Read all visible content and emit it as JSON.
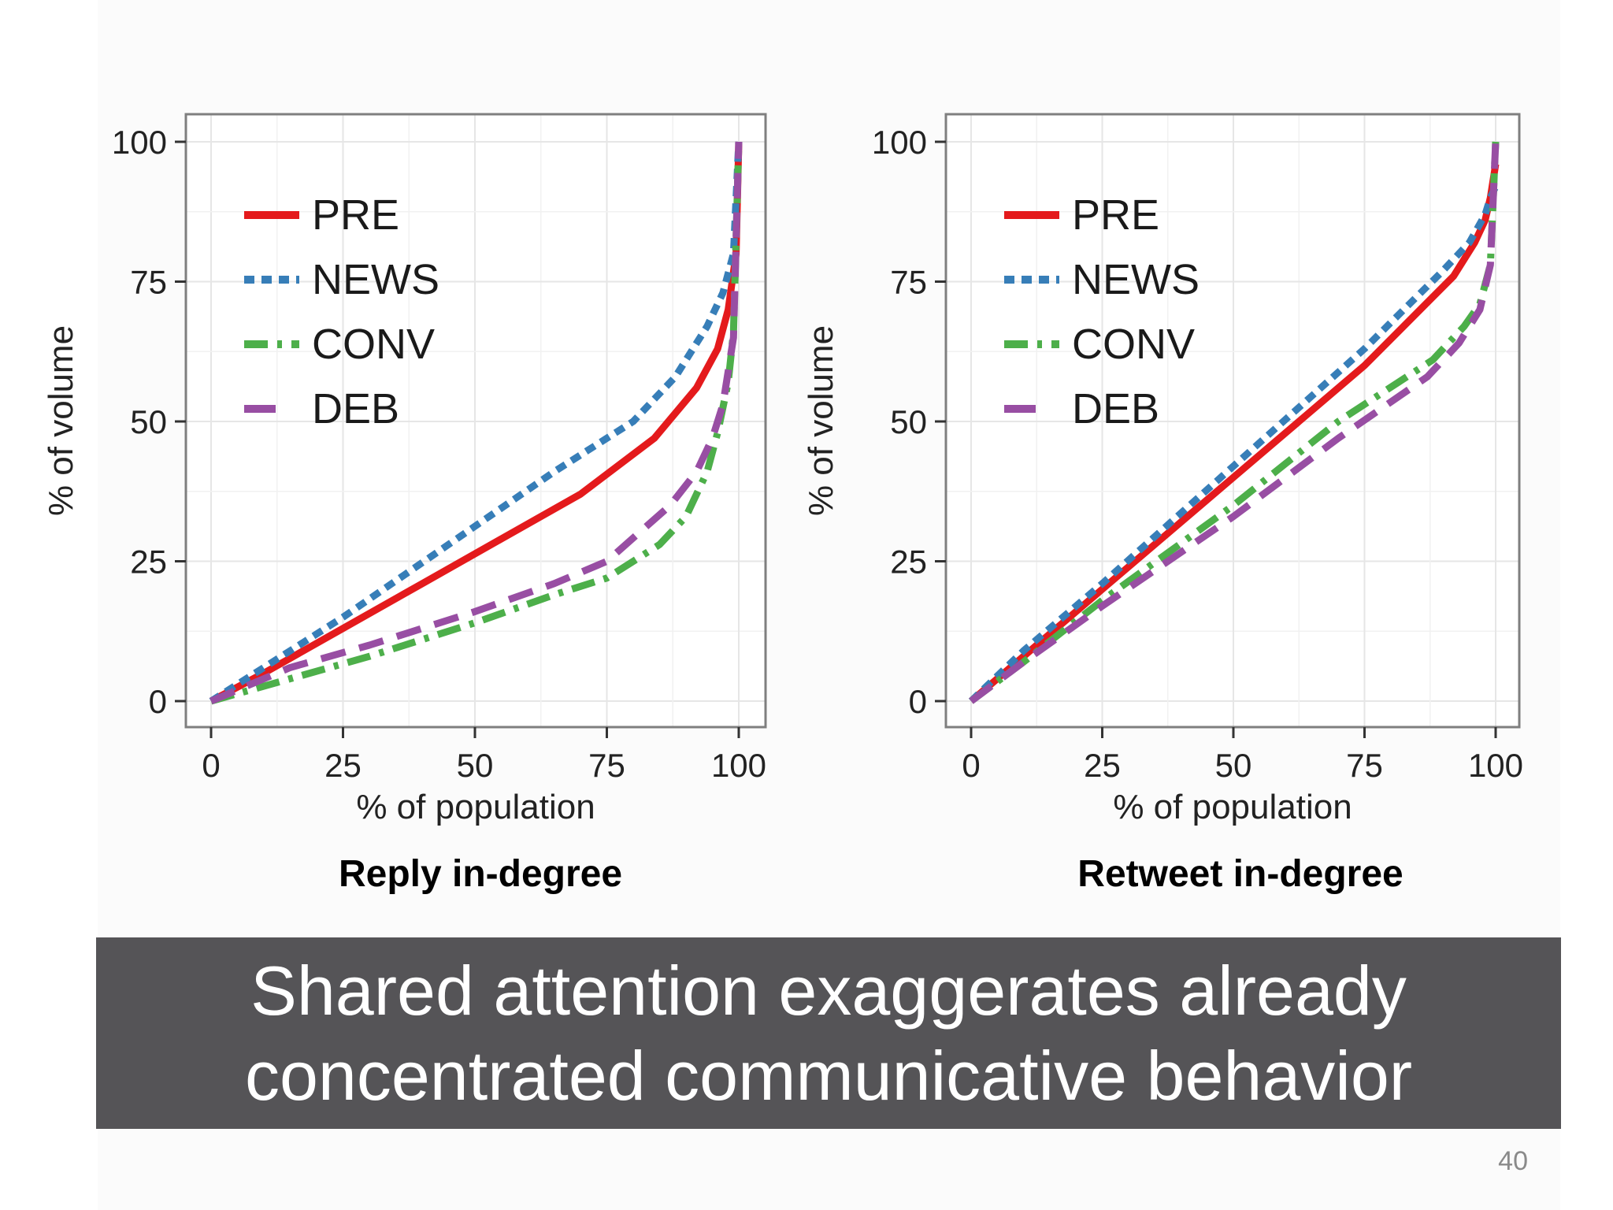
{
  "chart_data": [
    {
      "type": "line",
      "title": "Reply in-degree",
      "xlabel": "% of population",
      "ylabel": "% of volume",
      "xlim": [
        0,
        100
      ],
      "ylim": [
        0,
        100
      ],
      "xticks": [
        "0",
        "25",
        "50",
        "75",
        "100"
      ],
      "yticks": [
        "0",
        "25",
        "50",
        "75",
        "100"
      ],
      "grid": true,
      "legend_position": "top-left",
      "series": [
        {
          "name": "PRE",
          "color": "#e41a1c",
          "style": "solid",
          "x": [
            0,
            10,
            25,
            40,
            55,
            70,
            84,
            92,
            96,
            98,
            99.5,
            100
          ],
          "y": [
            0,
            5,
            13,
            21,
            29,
            37,
            47,
            56,
            63,
            70,
            80,
            100
          ]
        },
        {
          "name": "NEWS",
          "color": "#377eb8",
          "style": "dotted",
          "x": [
            0,
            10,
            25,
            45,
            65,
            80,
            88,
            94,
            97,
            99,
            100
          ],
          "y": [
            0,
            6,
            15,
            28,
            41,
            50,
            58,
            67,
            73,
            80,
            100
          ]
        },
        {
          "name": "CONV",
          "color": "#4daf4a",
          "style": "dashdot",
          "x": [
            0,
            15,
            30,
            50,
            65,
            75,
            85,
            90,
            94,
            96,
            98,
            99,
            100
          ],
          "y": [
            0,
            4,
            8,
            14,
            19,
            22,
            28,
            33,
            41,
            48,
            57,
            66,
            100
          ]
        },
        {
          "name": "DEB",
          "color": "#984ea3",
          "style": "dashed",
          "x": [
            0,
            15,
            30,
            50,
            65,
            75,
            87,
            92,
            95,
            97,
            99,
            100
          ],
          "y": [
            0,
            6,
            10,
            16,
            21,
            25,
            35,
            41,
            47,
            53,
            65,
            100
          ]
        }
      ]
    },
    {
      "type": "line",
      "title": "Retweet in-degree",
      "xlabel": "% of population",
      "ylabel": "% of volume",
      "xlim": [
        0,
        100
      ],
      "ylim": [
        0,
        100
      ],
      "xticks": [
        "0",
        "25",
        "50",
        "75",
        "100"
      ],
      "yticks": [
        "0",
        "25",
        "50",
        "75",
        "100"
      ],
      "grid": true,
      "legend_position": "top-left",
      "series": [
        {
          "name": "PRE",
          "color": "#e41a1c",
          "style": "solid",
          "x": [
            0,
            10,
            25,
            50,
            75,
            92,
            96,
            98,
            99,
            100
          ],
          "y": [
            0,
            8,
            20,
            40,
            60,
            76,
            82,
            86,
            90,
            96
          ]
        },
        {
          "name": "NEWS",
          "color": "#377eb8",
          "style": "dotted",
          "x": [
            0,
            10,
            25,
            50,
            75,
            90,
            95,
            98,
            99,
            100
          ],
          "y": [
            0,
            9,
            21,
            42,
            63,
            77,
            82,
            87,
            90,
            92
          ]
        },
        {
          "name": "CONV",
          "color": "#4daf4a",
          "style": "dashdot",
          "x": [
            0,
            10,
            25,
            50,
            70,
            88,
            94,
            97,
            99,
            100
          ],
          "y": [
            0,
            7,
            18,
            35,
            50,
            61,
            67,
            71,
            78,
            100
          ]
        },
        {
          "name": "DEB",
          "color": "#984ea3",
          "style": "dashed",
          "x": [
            0,
            10,
            25,
            50,
            70,
            87,
            93,
            97,
            99,
            100
          ],
          "y": [
            0,
            7,
            17,
            33,
            47,
            58,
            64,
            70,
            78,
            100
          ]
        }
      ]
    }
  ],
  "banner": {
    "line1": "Shared attention exaggerates already",
    "line2": "concentrated communicative behavior"
  },
  "page_number": "40"
}
